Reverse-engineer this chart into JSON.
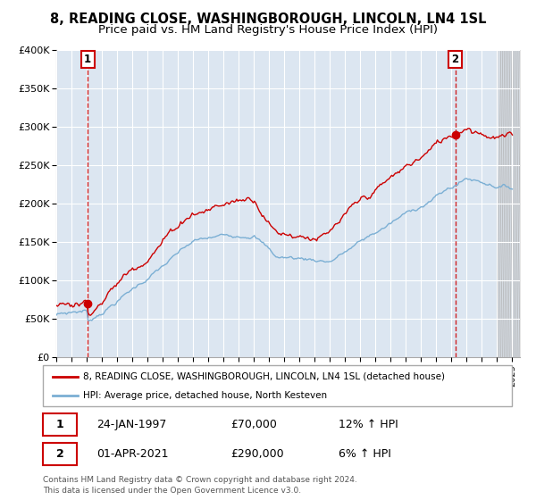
{
  "title": "8, READING CLOSE, WASHINGBOROUGH, LINCOLN, LN4 1SL",
  "subtitle": "Price paid vs. HM Land Registry's House Price Index (HPI)",
  "title_fontsize": 10.5,
  "subtitle_fontsize": 9.5,
  "x_start_year": 1995,
  "x_end_year": 2025,
  "y_min": 0,
  "y_max": 400000,
  "y_ticks": [
    0,
    50000,
    100000,
    150000,
    200000,
    250000,
    300000,
    350000,
    400000
  ],
  "y_tick_labels": [
    "£0",
    "£50K",
    "£100K",
    "£150K",
    "£200K",
    "£250K",
    "£300K",
    "£350K",
    "£400K"
  ],
  "hpi_color": "#7bafd4",
  "price_color": "#cc0000",
  "plot_bg_color": "#dce6f1",
  "grid_color": "#ffffff",
  "vline_color": "#cc0000",
  "marker1_year": 1997.07,
  "marker1_value": 70000,
  "marker2_year": 2021.25,
  "marker2_value": 290000,
  "marker1_date": "24-JAN-1997",
  "marker1_price": "£70,000",
  "marker1_hpi": "12% ↑ HPI",
  "marker2_date": "01-APR-2021",
  "marker2_price": "£290,000",
  "marker2_hpi": "6% ↑ HPI",
  "legend_red_label": "8, READING CLOSE, WASHINGBOROUGH, LINCOLN, LN4 1SL (detached house)",
  "legend_blue_label": "HPI: Average price, detached house, North Kesteven",
  "footer_text": "Contains HM Land Registry data © Crown copyright and database right 2024.\nThis data is licensed under the Open Government Licence v3.0."
}
